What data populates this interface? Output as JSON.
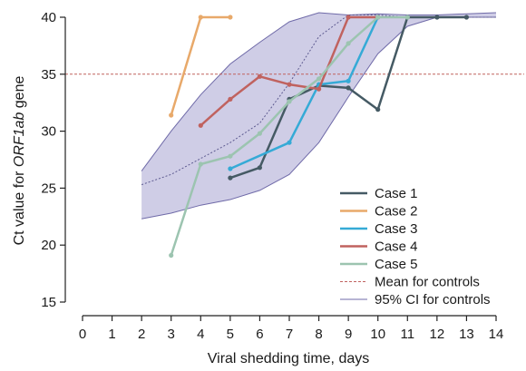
{
  "chart_data": {
    "type": "line",
    "xlabel": "Viral shedding time, days",
    "ylabel_prefix": "Ct value for ",
    "ylabel_gene": "ORF1ab",
    "ylabel_suffix": " gene",
    "xlim": [
      0,
      14
    ],
    "ylim": [
      15,
      40
    ],
    "xticks": [
      "0",
      "1",
      "2",
      "3",
      "4",
      "5",
      "6",
      "7",
      "8",
      "9",
      "10",
      "11",
      "12",
      "13",
      "14"
    ],
    "yticks": [
      "15",
      "20",
      "25",
      "30",
      "35",
      "40"
    ],
    "threshold": 35,
    "grid": false,
    "legend_position": "bottom-right",
    "series": [
      {
        "name": "Case 1",
        "color": "#455a64",
        "points": [
          [
            5,
            25.9
          ],
          [
            6,
            26.8
          ],
          [
            7,
            32.8
          ],
          [
            8,
            34.0
          ],
          [
            9,
            33.8
          ],
          [
            10,
            31.9
          ],
          [
            11,
            40.0
          ],
          [
            12,
            40.0
          ],
          [
            13,
            40.0
          ]
        ]
      },
      {
        "name": "Case 2",
        "color": "#e8a96a",
        "points": [
          [
            3,
            31.4
          ],
          [
            4,
            40.0
          ],
          [
            5,
            40.0
          ]
        ]
      },
      {
        "name": "Case 3",
        "color": "#35aad6",
        "points": [
          [
            5,
            26.7
          ],
          [
            7,
            29.0
          ],
          [
            8,
            34.1
          ],
          [
            9,
            34.4
          ],
          [
            10,
            40.0
          ]
        ]
      },
      {
        "name": "Case 4",
        "color": "#c0625f",
        "points": [
          [
            4,
            30.5
          ],
          [
            5,
            32.8
          ],
          [
            6,
            34.8
          ],
          [
            7,
            34.1
          ],
          [
            8,
            33.7
          ],
          [
            9,
            40.0
          ],
          [
            10,
            40.0
          ]
        ]
      },
      {
        "name": "Case 5",
        "color": "#9cc4b0",
        "points": [
          [
            3,
            19.1
          ],
          [
            4,
            27.1
          ],
          [
            5,
            27.8
          ],
          [
            6,
            29.8
          ],
          [
            7,
            32.6
          ],
          [
            8,
            34.6
          ],
          [
            9,
            37.7
          ],
          [
            10,
            40.0
          ],
          [
            11,
            40.0
          ]
        ]
      }
    ],
    "mean_controls": {
      "name": "Mean for controls",
      "color": "#c0625f",
      "points": [
        [
          2,
          25.3
        ],
        [
          3,
          26.2
        ],
        [
          4,
          27.6
        ],
        [
          5,
          29.0
        ],
        [
          6,
          30.7
        ],
        [
          7,
          34.2
        ],
        [
          8,
          38.3
        ],
        [
          9,
          40.2
        ],
        [
          10,
          40.2
        ],
        [
          11,
          40.0
        ],
        [
          12,
          40.0
        ],
        [
          13,
          40.0
        ],
        [
          14,
          40.0
        ]
      ]
    },
    "ci_controls": {
      "name": "95% CI for controls",
      "color": "#6f6aa8",
      "fill": "#cfcde6",
      "upper": [
        [
          2,
          26.5
        ],
        [
          3,
          30.0
        ],
        [
          4,
          33.2
        ],
        [
          5,
          35.9
        ],
        [
          6,
          37.8
        ],
        [
          7,
          39.6
        ],
        [
          8,
          40.4
        ],
        [
          9,
          40.2
        ],
        [
          10,
          40.3
        ],
        [
          11,
          40.2
        ],
        [
          12,
          40.2
        ],
        [
          13,
          40.3
        ],
        [
          14,
          40.4
        ]
      ],
      "lower": [
        [
          2,
          22.3
        ],
        [
          3,
          22.8
        ],
        [
          4,
          23.5
        ],
        [
          5,
          24.0
        ],
        [
          6,
          24.8
        ],
        [
          7,
          26.2
        ],
        [
          8,
          29.0
        ],
        [
          9,
          33.0
        ],
        [
          10,
          36.8
        ],
        [
          11,
          39.2
        ],
        [
          12,
          40.0
        ],
        [
          13,
          40.0
        ],
        [
          14,
          40.0
        ]
      ]
    }
  }
}
